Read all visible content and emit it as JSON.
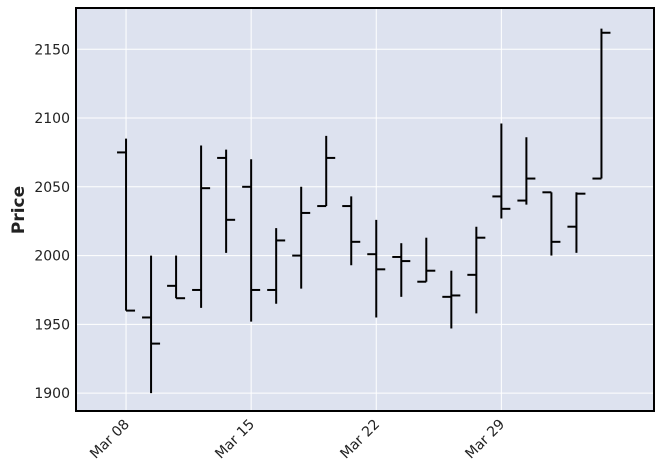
{
  "chart_data": {
    "type": "ohlc",
    "y_label": "Price",
    "color": "#000000",
    "background": "#dde2ef",
    "grid": true,
    "categories": [
      "Mar 08",
      null,
      null,
      null,
      null,
      "Mar 15",
      null,
      null,
      null,
      null,
      "Mar 22",
      null,
      null,
      null,
      null,
      "Mar 29",
      null,
      null,
      null,
      null
    ],
    "open": [
      2075,
      1955,
      1978,
      1975,
      2071,
      2050,
      1975,
      2000,
      2036,
      2036,
      2001,
      1999,
      1981,
      1970,
      1986,
      2043,
      2040,
      2046,
      2021,
      2056
    ],
    "high": [
      2085,
      2000,
      2000,
      2080,
      2077,
      2070,
      2020,
      2050,
      2087,
      2043,
      2026,
      2009,
      2013,
      1989,
      2021,
      2096,
      2086,
      2046,
      2046,
      2165
    ],
    "low": [
      1960,
      1900,
      1969,
      1962,
      2002,
      1952,
      1965,
      1976,
      2036,
      1993,
      1955,
      1970,
      1981,
      1947,
      1958,
      2027,
      2037,
      2000,
      2002,
      2056
    ],
    "close": [
      1960,
      1936,
      1969,
      2049,
      2026,
      1975,
      2011,
      2031,
      2071,
      2010,
      1990,
      1996,
      1989,
      1971,
      2013,
      2034,
      2056,
      2010,
      2045,
      2162
    ],
    "ylim": [
      1887,
      2180
    ],
    "yticks": [
      1900,
      1950,
      2000,
      2050,
      2100,
      2150
    ]
  }
}
